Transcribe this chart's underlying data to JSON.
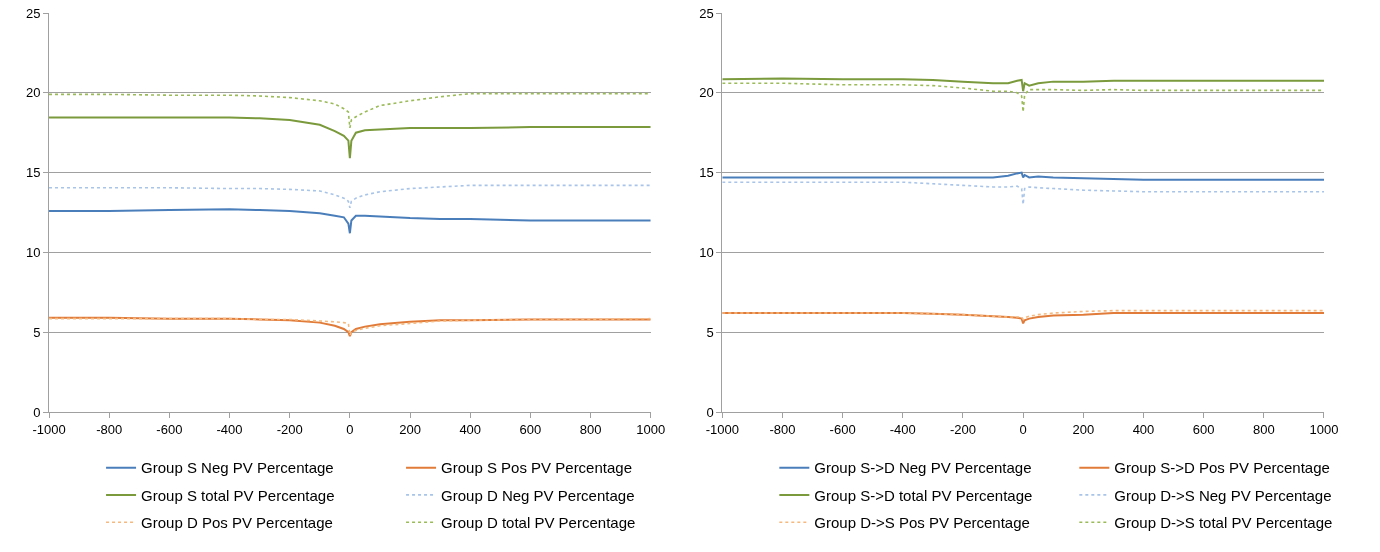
{
  "chart_data": [
    {
      "type": "line",
      "x": [
        -1000,
        -800,
        -600,
        -400,
        -300,
        -200,
        -100,
        -50,
        -20,
        -5,
        0,
        5,
        20,
        50,
        100,
        200,
        300,
        400,
        600,
        800,
        1000
      ],
      "xlim": [
        -1000,
        1000
      ],
      "xticks": [
        -1000,
        -800,
        -600,
        -400,
        -200,
        0,
        200,
        400,
        600,
        800,
        1000
      ],
      "ylim": [
        0,
        25
      ],
      "yticks": [
        0,
        5,
        10,
        15,
        20,
        25
      ],
      "grid": "y",
      "legend": "bottom",
      "marker": "none",
      "series": [
        {
          "name": "Group S Neg PV Percentage",
          "color": "#4a7ebb",
          "line_style": "solid",
          "values": [
            12.6,
            12.6,
            12.65,
            12.7,
            12.65,
            12.6,
            12.45,
            12.3,
            12.2,
            11.8,
            11.2,
            12.0,
            12.3,
            12.3,
            12.25,
            12.15,
            12.1,
            12.1,
            12.0,
            12.0,
            12.0
          ]
        },
        {
          "name": "Group S Pos PV Percentage",
          "color": "#e07b39",
          "line_style": "solid",
          "values": [
            5.9,
            5.9,
            5.85,
            5.85,
            5.8,
            5.75,
            5.6,
            5.4,
            5.2,
            5.0,
            4.75,
            5.0,
            5.2,
            5.35,
            5.5,
            5.65,
            5.75,
            5.75,
            5.8,
            5.8,
            5.8
          ]
        },
        {
          "name": "Group S total PV Percentage",
          "color": "#7a9a3c",
          "line_style": "solid",
          "values": [
            18.45,
            18.45,
            18.45,
            18.45,
            18.4,
            18.3,
            18.0,
            17.6,
            17.3,
            17.0,
            15.9,
            17.0,
            17.5,
            17.65,
            17.7,
            17.8,
            17.8,
            17.8,
            17.85,
            17.85,
            17.85
          ]
        },
        {
          "name": "Group D Neg PV Percentage",
          "color": "#a8c4e8",
          "line_style": "dotted",
          "values": [
            14.05,
            14.05,
            14.05,
            14.0,
            14.0,
            13.95,
            13.85,
            13.6,
            13.4,
            13.2,
            12.8,
            13.2,
            13.4,
            13.6,
            13.8,
            14.0,
            14.1,
            14.2,
            14.2,
            14.2,
            14.2
          ]
        },
        {
          "name": "Group D Pos PV Percentage",
          "color": "#f5b97f",
          "line_style": "dotted",
          "values": [
            5.85,
            5.85,
            5.85,
            5.85,
            5.8,
            5.8,
            5.7,
            5.65,
            5.6,
            5.55,
            4.8,
            5.0,
            5.1,
            5.25,
            5.4,
            5.55,
            5.7,
            5.75,
            5.8,
            5.8,
            5.85
          ]
        },
        {
          "name": "Group D total PV Percentage",
          "color": "#9bbb59",
          "line_style": "dotted",
          "values": [
            19.9,
            19.9,
            19.85,
            19.85,
            19.8,
            19.7,
            19.5,
            19.3,
            19.0,
            18.8,
            17.8,
            18.3,
            18.5,
            18.8,
            19.2,
            19.5,
            19.75,
            19.95,
            19.95,
            19.95,
            19.95
          ]
        }
      ]
    },
    {
      "type": "line",
      "x": [
        -1000,
        -800,
        -600,
        -400,
        -300,
        -200,
        -100,
        -50,
        -20,
        -5,
        0,
        5,
        20,
        50,
        100,
        200,
        300,
        400,
        600,
        800,
        1000
      ],
      "xlim": [
        -1000,
        1000
      ],
      "xticks": [
        -1000,
        -800,
        -600,
        -400,
        -200,
        0,
        200,
        400,
        600,
        800,
        1000
      ],
      "ylim": [
        0,
        25
      ],
      "yticks": [
        0,
        5,
        10,
        15,
        20,
        25
      ],
      "grid": "y",
      "legend": "bottom",
      "marker": "none",
      "series": [
        {
          "name": "Group S->D Neg PV Percentage",
          "color": "#4a7ebb",
          "line_style": "solid",
          "values": [
            14.7,
            14.7,
            14.7,
            14.7,
            14.7,
            14.7,
            14.7,
            14.8,
            14.95,
            15.0,
            14.7,
            14.85,
            14.7,
            14.75,
            14.7,
            14.65,
            14.6,
            14.55,
            14.55,
            14.55,
            14.55
          ]
        },
        {
          "name": "Group S->D Pos PV Percentage",
          "color": "#e07b39",
          "line_style": "solid",
          "values": [
            6.2,
            6.2,
            6.2,
            6.2,
            6.15,
            6.1,
            6.0,
            5.95,
            5.9,
            5.85,
            5.55,
            5.75,
            5.85,
            5.95,
            6.05,
            6.1,
            6.2,
            6.2,
            6.2,
            6.2,
            6.2
          ]
        },
        {
          "name": "Group S->D total PV Percentage",
          "color": "#7a9a3c",
          "line_style": "solid",
          "values": [
            20.85,
            20.9,
            20.85,
            20.85,
            20.8,
            20.7,
            20.6,
            20.6,
            20.75,
            20.8,
            20.1,
            20.6,
            20.45,
            20.6,
            20.7,
            20.7,
            20.75,
            20.75,
            20.75,
            20.75,
            20.75
          ]
        },
        {
          "name": "Group D->S Neg PV Percentage",
          "color": "#a8c4e8",
          "line_style": "dotted",
          "values": [
            14.4,
            14.4,
            14.4,
            14.4,
            14.3,
            14.2,
            14.1,
            14.1,
            14.15,
            14.0,
            13.0,
            14.0,
            14.1,
            14.05,
            14.0,
            13.9,
            13.85,
            13.8,
            13.8,
            13.8,
            13.8
          ]
        },
        {
          "name": "Group D->S Pos PV Percentage",
          "color": "#f5b97f",
          "line_style": "dotted",
          "values": [
            6.2,
            6.2,
            6.2,
            6.2,
            6.15,
            6.1,
            6.0,
            5.95,
            5.95,
            5.95,
            5.8,
            5.9,
            6.0,
            6.1,
            6.2,
            6.3,
            6.35,
            6.35,
            6.35,
            6.35,
            6.35
          ]
        },
        {
          "name": "Group D->S total PV Percentage",
          "color": "#9bbb59",
          "line_style": "dotted",
          "values": [
            20.6,
            20.6,
            20.5,
            20.5,
            20.45,
            20.3,
            20.1,
            20.1,
            20.0,
            19.8,
            18.8,
            19.9,
            20.2,
            20.2,
            20.2,
            20.15,
            20.2,
            20.15,
            20.15,
            20.15,
            20.15
          ]
        }
      ]
    }
  ]
}
